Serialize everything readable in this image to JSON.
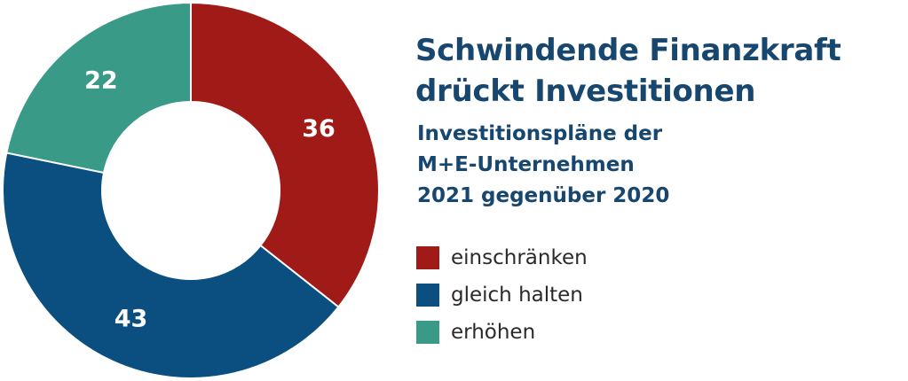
{
  "chart_data": {
    "type": "pie",
    "donut": true,
    "title": "Schwindende Finanzkraft drückt Investitionen",
    "title_lines": [
      "Schwindende Finanzkraft",
      "drückt Investitionen"
    ],
    "subtitle": "Investitionspläne der M+E-Unternehmen 2021 gegenüber 2020",
    "subtitle_lines": [
      "Investitionspläne der",
      "M+E-Unternehmen",
      "2021 gegenüber 2020"
    ],
    "categories": [
      "einschränken",
      "gleich halten",
      "erhöhen"
    ],
    "values": [
      36,
      43,
      22
    ],
    "value_labels": [
      "36",
      "43",
      "22"
    ],
    "colors": [
      "#a01a17",
      "#0a4f80",
      "#3a9a88"
    ],
    "legend_position": "right"
  }
}
